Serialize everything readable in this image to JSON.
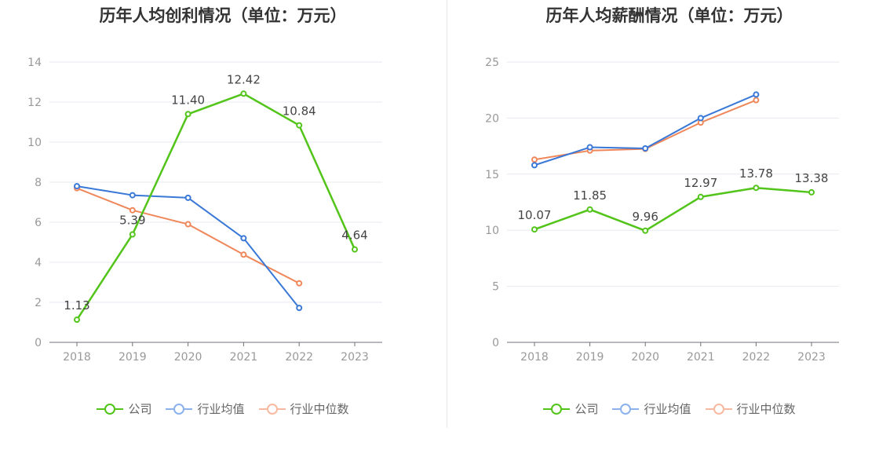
{
  "colors": {
    "company": "#52c41a",
    "industry_avg": "#3a78d8",
    "industry_median": "#f0875a",
    "legend_avg": "#8cb2ee",
    "legend_median": "#f8b9a0"
  },
  "legend": {
    "company": "公司",
    "industry_avg": "行业均值",
    "industry_median": "行业中位数"
  },
  "chart_data": [
    {
      "type": "line",
      "title": "历年人均创利情况（单位：万元）",
      "categories": [
        "2018",
        "2019",
        "2020",
        "2021",
        "2022",
        "2023"
      ],
      "ylim": [
        0,
        14
      ],
      "yticks": [
        0,
        2,
        4,
        6,
        8,
        10,
        12,
        14
      ],
      "grid": true,
      "legend_position": "bottom",
      "series": [
        {
          "name": "公司",
          "key": "company",
          "values": [
            1.13,
            5.39,
            11.4,
            12.42,
            10.84,
            4.64
          ],
          "labels": [
            "1.13",
            "5.39",
            "11.40",
            "12.42",
            "10.84",
            "4.64"
          ]
        },
        {
          "name": "行业均值",
          "key": "industry_avg",
          "values": [
            7.8,
            7.35,
            7.22,
            5.2,
            1.72,
            null
          ]
        },
        {
          "name": "行业中位数",
          "key": "industry_median",
          "values": [
            7.7,
            6.6,
            5.9,
            4.38,
            2.95,
            null
          ]
        }
      ]
    },
    {
      "type": "line",
      "title": "历年人均薪酬情况（单位：万元）",
      "categories": [
        "2018",
        "2019",
        "2020",
        "2021",
        "2022",
        "2023"
      ],
      "ylim": [
        0,
        25
      ],
      "yticks": [
        0,
        5,
        10,
        15,
        20,
        25
      ],
      "grid": true,
      "legend_position": "bottom",
      "series": [
        {
          "name": "公司",
          "key": "company",
          "values": [
            10.07,
            11.85,
            9.96,
            12.97,
            13.78,
            13.38
          ],
          "labels": [
            "10.07",
            "11.85",
            "9.96",
            "12.97",
            "13.78",
            "13.38"
          ]
        },
        {
          "name": "行业均值",
          "key": "industry_avg",
          "values": [
            15.8,
            17.4,
            17.3,
            20.0,
            22.1,
            null
          ]
        },
        {
          "name": "行业中位数",
          "key": "industry_median",
          "values": [
            16.3,
            17.1,
            17.25,
            19.6,
            21.6,
            null
          ]
        }
      ]
    }
  ]
}
